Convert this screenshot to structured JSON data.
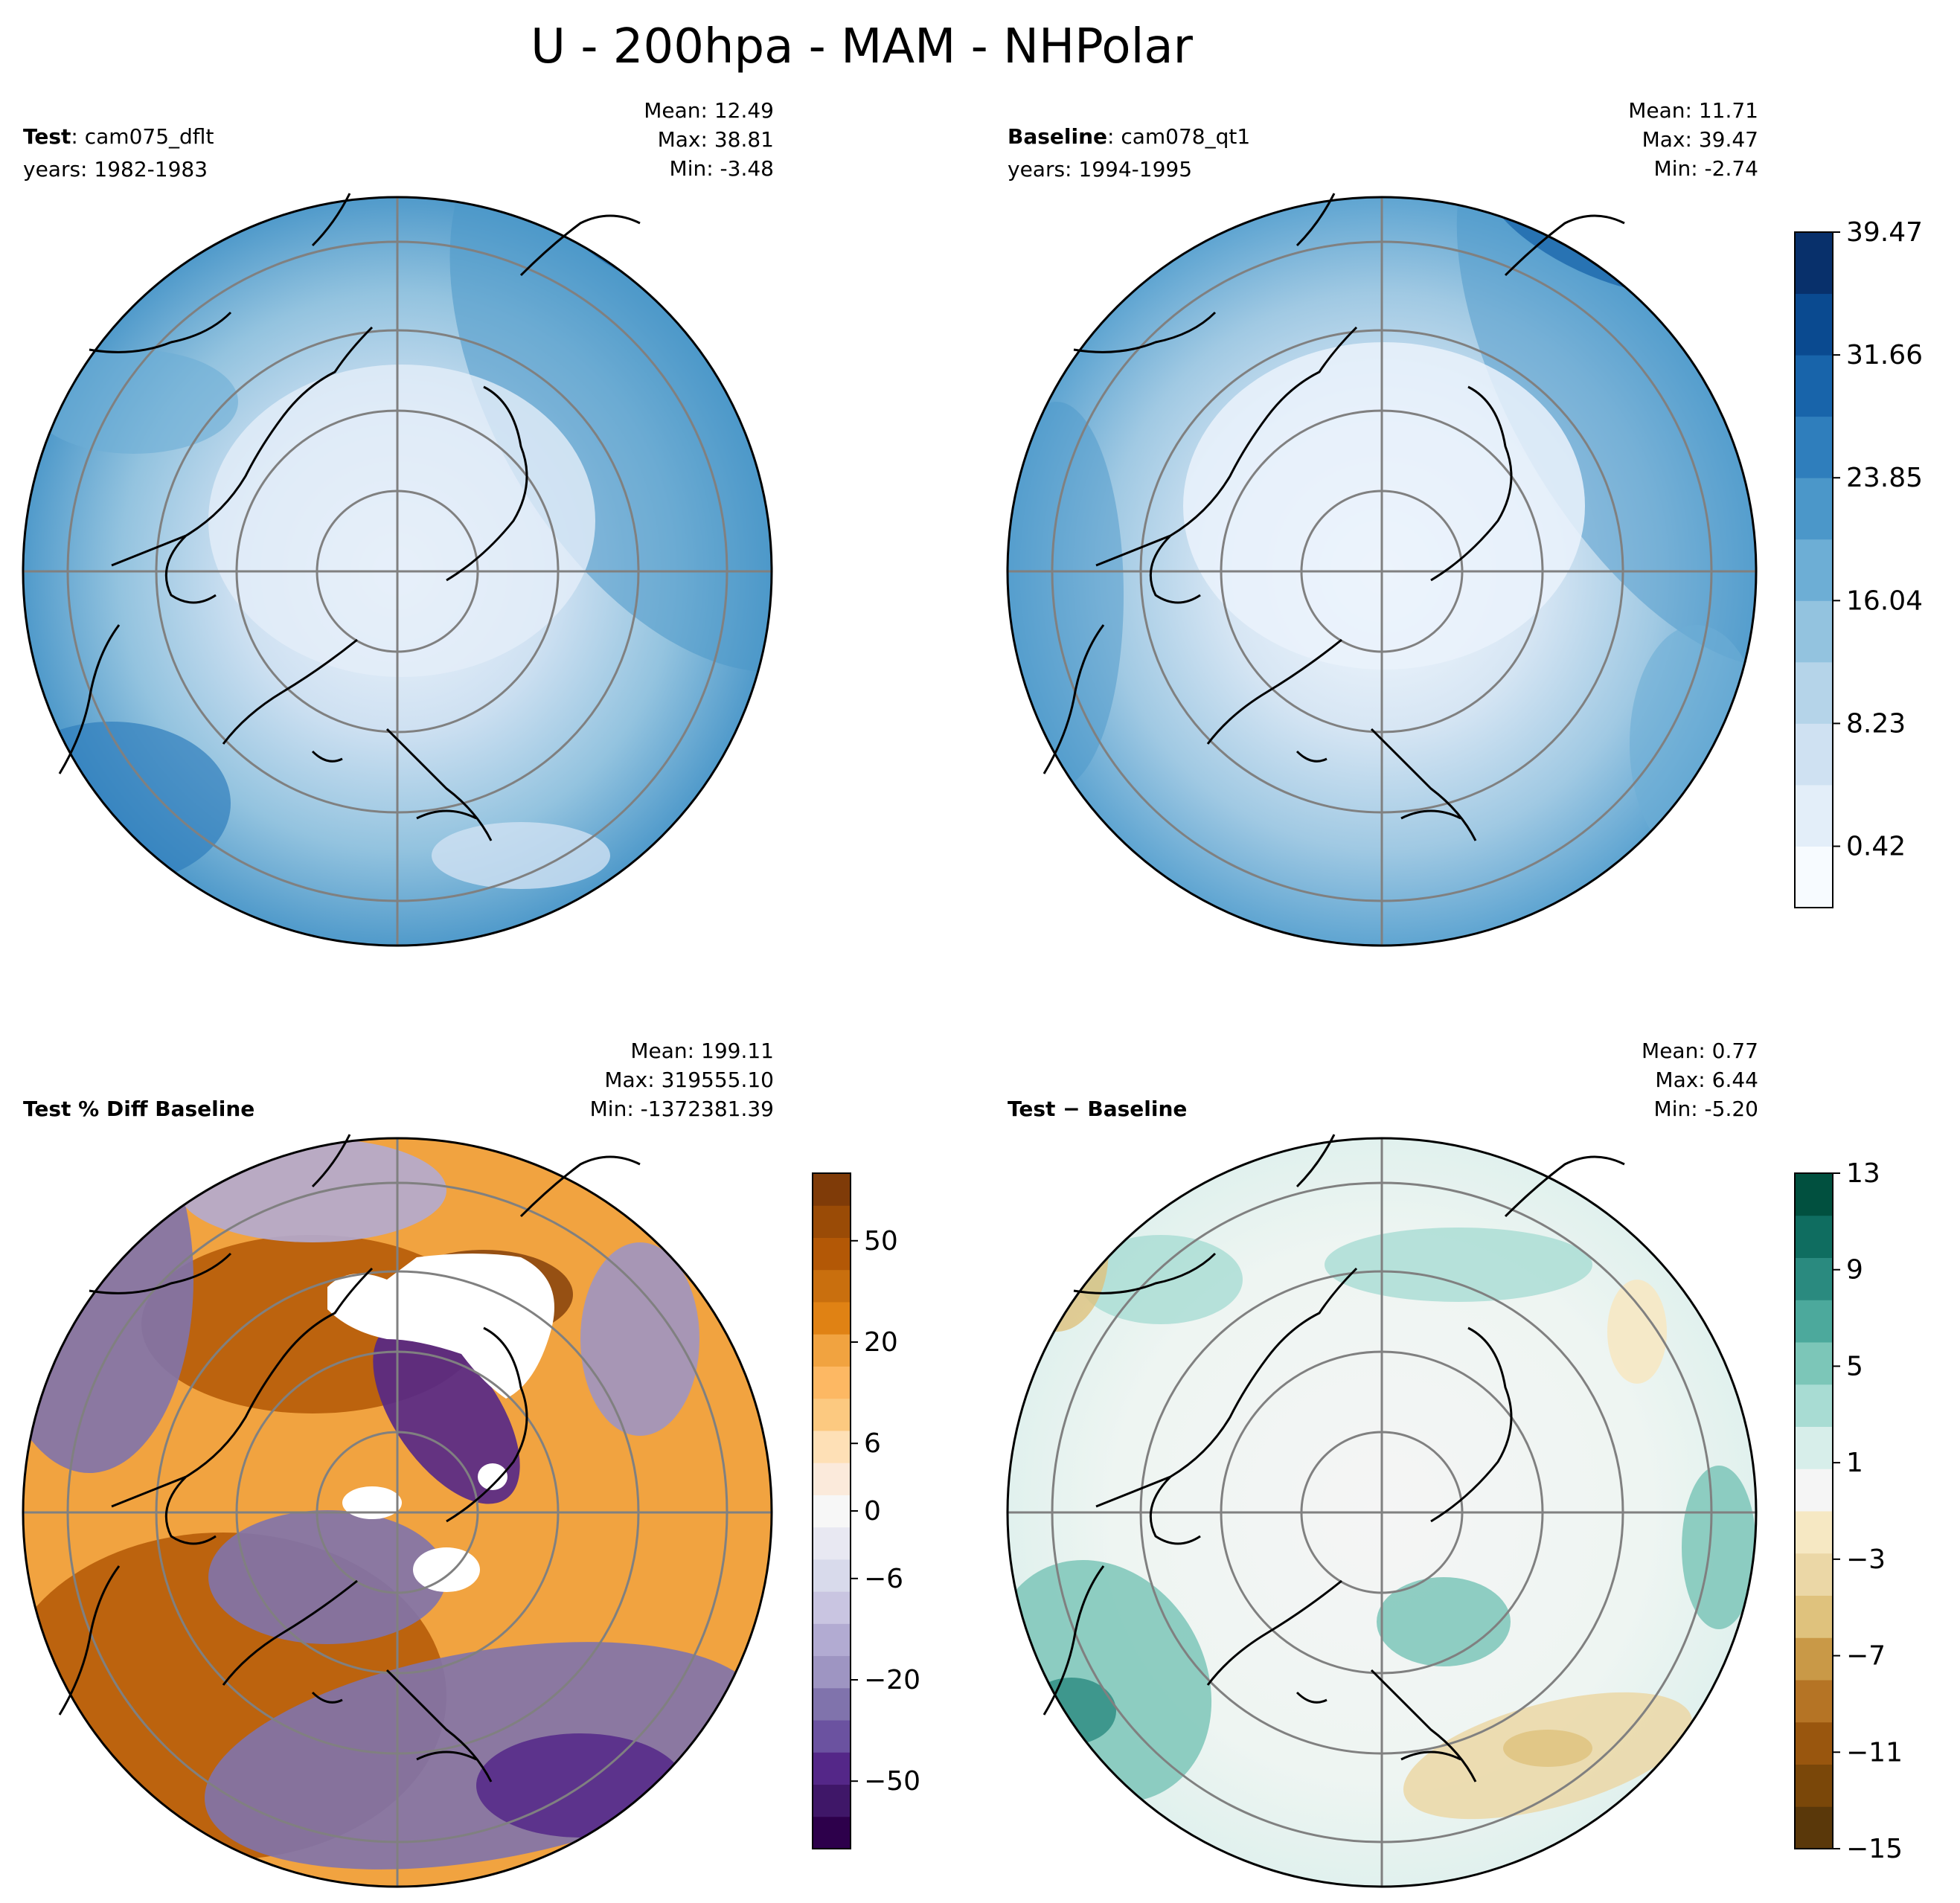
{
  "figure": {
    "title": "U - 200hpa - MAM - NHPolar"
  },
  "chart_data": [
    {
      "type": "heatmap",
      "panel": "test",
      "projection": "north polar stereographic",
      "label_bold": "Test",
      "label_rest": ": cam075_dflt",
      "years": "years: 1982-1983",
      "stats": [
        "Mean: 12.49",
        "Max: 38.81",
        "Min: -3.48"
      ],
      "shared_colorbar": "baseline"
    },
    {
      "type": "heatmap",
      "panel": "baseline",
      "projection": "north polar stereographic",
      "label_bold": "Baseline",
      "label_rest": ": cam078_qt1",
      "years": "years: 1994-1995",
      "stats": [
        "Mean: 11.71",
        "Max: 39.47",
        "Min: -2.74"
      ],
      "colorbar": {
        "cmap": "Blues",
        "colors": [
          "#f7fbff",
          "#e3eef9",
          "#cfe1f2",
          "#b5d4e9",
          "#93c3df",
          "#6daed5",
          "#4b97c9",
          "#2f7ebc",
          "#1864aa",
          "#0a4a90",
          "#08306b"
        ],
        "ticks": [
          "0.42",
          "8.23",
          "16.04",
          "23.85",
          "31.66",
          "39.47"
        ],
        "tick_values": [
          0.42,
          8.23,
          16.04,
          23.85,
          31.66,
          39.47
        ],
        "range": [
          -3.48,
          39.47
        ]
      }
    },
    {
      "type": "heatmap",
      "panel": "pct_diff",
      "projection": "north polar stereographic",
      "label_bold": "Test % Diff Baseline",
      "stats": [
        "Mean: 199.11",
        "Max: 319555.10",
        "Min: -1372381.39"
      ],
      "colorbar": {
        "cmap": "PuOr_r",
        "colors": [
          "#2d004b",
          "#3f1768",
          "#542788",
          "#6b52a0",
          "#8073ac",
          "#9e95c2",
          "#b2abd2",
          "#c9c5e1",
          "#d8daeb",
          "#e8e8f2",
          "#f7f7f7",
          "#fbeadb",
          "#fee0b6",
          "#fcc980",
          "#fdb863",
          "#f1a340",
          "#e08214",
          "#c96f0e",
          "#b35806",
          "#9a4b06",
          "#7f3b08"
        ],
        "ticks": [
          "−50",
          "−20",
          "−6",
          "0",
          "6",
          "20",
          "50"
        ],
        "tick_positions": [
          0.1,
          0.25,
          0.4,
          0.5,
          0.6,
          0.75,
          0.9
        ]
      }
    },
    {
      "type": "heatmap",
      "panel": "diff",
      "projection": "north polar stereographic",
      "label_bold": "Test − Baseline",
      "stats": [
        "Mean:  0.77",
        "Max:  6.44",
        "Min: -5.20"
      ],
      "colorbar": {
        "cmap": "BrBG",
        "colors": [
          "#5a380a",
          "#7a4709",
          "#99560e",
          "#b57425",
          "#c99947",
          "#dfc27d",
          "#ebd7a6",
          "#f6e8c3",
          "#f5f5f5",
          "#d7eeea",
          "#a8dcd3",
          "#7cc6b8",
          "#4ca99c",
          "#2a8a7f",
          "#0f6d60",
          "#01503f"
        ],
        "ticks": [
          "−15",
          "−11",
          "−7",
          "−3",
          "1",
          "5",
          "9",
          "13"
        ],
        "tick_values": [
          -15,
          -11,
          -7,
          -3,
          1,
          5,
          9,
          13
        ]
      }
    }
  ]
}
